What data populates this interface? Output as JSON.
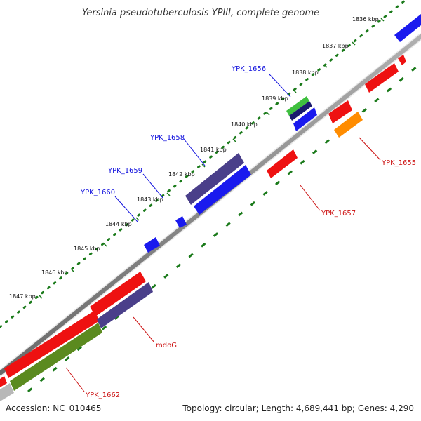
{
  "title": "Yersinia pseudotuberculosis YPIII, complete genome",
  "footer": {
    "accession": "Accession: NC_010465",
    "stats": "Topology: circular; Length: 4,689,441 bp; Genes: 4,290"
  },
  "colors": {
    "backbone": "#808080",
    "ruler_dots": "#1a7a1a",
    "ruler_dashes": "#1a7a1a",
    "blue_label": "#1010dd",
    "red_label": "#cc1111"
  },
  "ticks": [
    {
      "label": "1836 kbp"
    },
    {
      "label": "1837 kbp"
    },
    {
      "label": "1838 kbp"
    },
    {
      "label": "1839 kbp"
    },
    {
      "label": "1840 kbp"
    },
    {
      "label": "1841 kbp"
    },
    {
      "label": "1842 kbp"
    },
    {
      "label": "1843 kbp"
    },
    {
      "label": "1844 kbp"
    },
    {
      "label": "1845 kbp"
    },
    {
      "label": "1846 kbp"
    },
    {
      "label": "1847 kbp"
    }
  ],
  "gene_labels": {
    "ypk1656": "YPK_1656",
    "ypk1658": "YPK_1658",
    "ypk1659": "YPK_1659",
    "ypk1660": "YPK_1660",
    "ypk1655": "YPK_1655",
    "ypk1657": "YPK_1657",
    "mdog": "mdoG",
    "ypk1662": "YPK_1662"
  }
}
